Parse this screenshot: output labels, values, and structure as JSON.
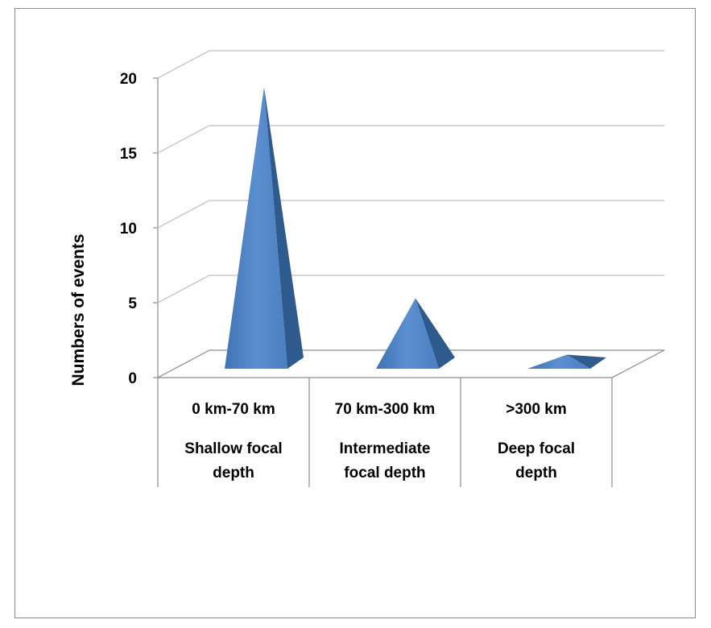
{
  "chart_data": {
    "type": "bar",
    "bar_shape": "3d-pyramid",
    "categories": [
      "0 km-70 km",
      "70 km-300 km",
      ">300 km"
    ],
    "category_descriptions": [
      "Shallow focal depth",
      "Intermediate focal depth",
      "Deep focal depth"
    ],
    "values": [
      20,
      5,
      1
    ],
    "title": "",
    "xlabel": "",
    "ylabel": "Numbers of events",
    "ylim": [
      0,
      20
    ],
    "yticks": [
      0,
      5,
      10,
      15,
      20
    ],
    "grid": true,
    "legend": "none",
    "colors": {
      "front": "#4f81bd",
      "side": "#2f5a8e",
      "grid": "#c8c8c8",
      "axis": "#8c8c8c"
    }
  }
}
